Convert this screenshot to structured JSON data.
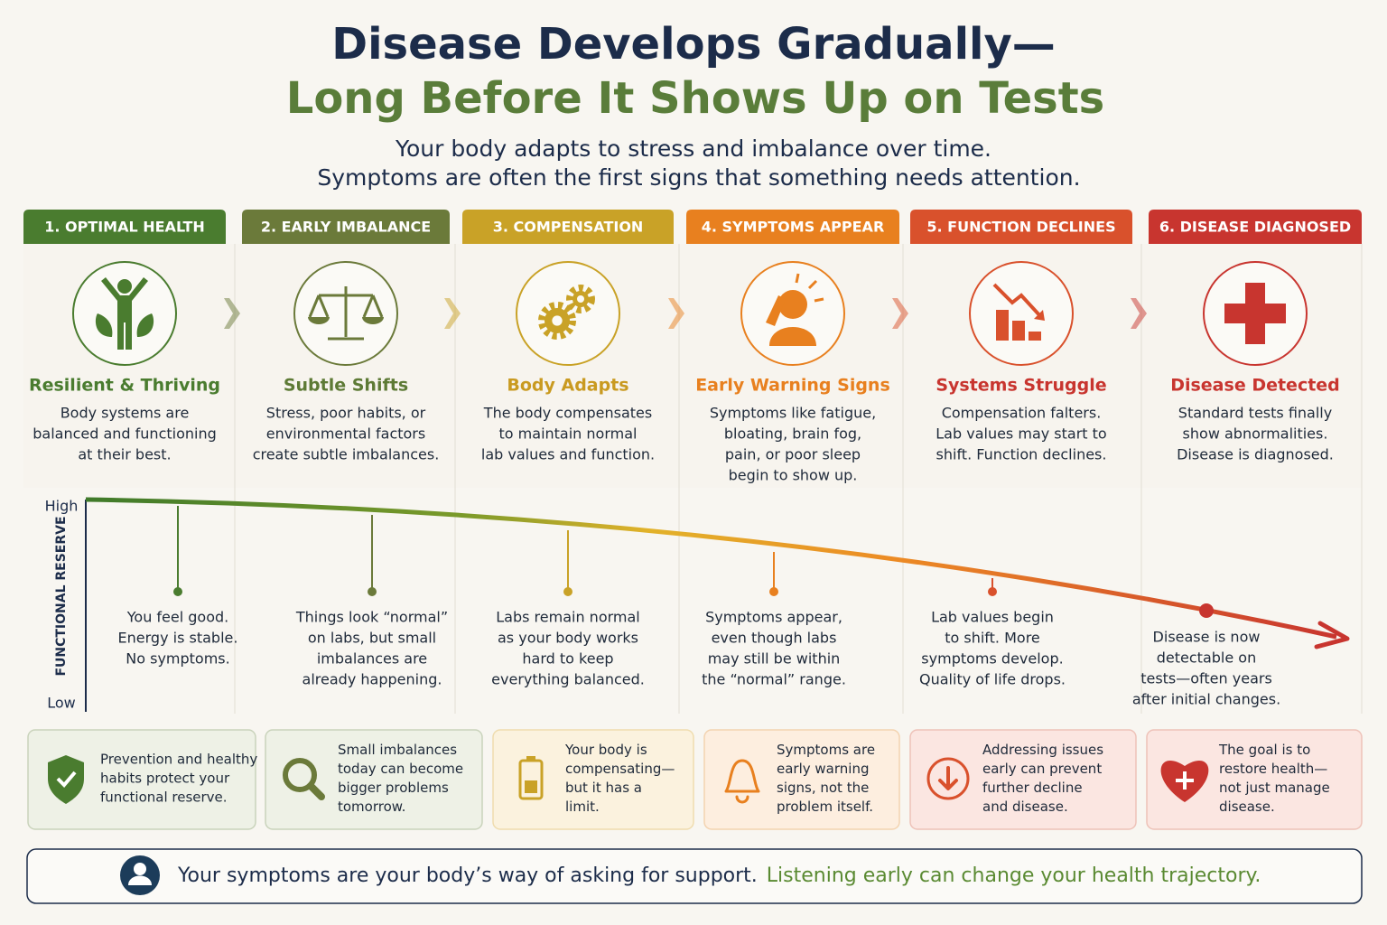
{
  "header": {
    "title_line1": "Disease Develops Gradually—",
    "title_line2": "Long Before It Shows Up on Tests",
    "subtitle_line1": "Your body adapts to stress and imbalance over time.",
    "subtitle_line2": "Symptoms are often the first signs that something needs attention."
  },
  "stages": [
    {
      "label": "1. OPTIMAL HEALTH",
      "title": "Resilient & Thriving",
      "description": [
        "Body systems are",
        "balanced and functioning",
        "at their best."
      ],
      "note": [
        "You feel good.",
        "Energy is stable.",
        "No symptoms."
      ],
      "tip": [
        "Prevention and healthy",
        "habits protect your",
        "functional reserve."
      ]
    },
    {
      "label": "2. EARLY IMBALANCE",
      "title": "Subtle Shifts",
      "description": [
        "Stress, poor habits, or",
        "environmental factors",
        "create subtle imbalances."
      ],
      "note": [
        "Things look “normal”",
        "on labs, but small",
        "imbalances are",
        "already happening."
      ],
      "tip": [
        "Small imbalances",
        "today can become",
        "bigger problems",
        "tomorrow."
      ]
    },
    {
      "label": "3. COMPENSATION",
      "title": "Body Adapts",
      "description": [
        "The body compensates",
        "to maintain normal",
        "lab values and function."
      ],
      "note": [
        "Labs remain normal",
        "as your body works",
        "hard to keep",
        "everything balanced."
      ],
      "tip": [
        "Your body is",
        "compensating—",
        "but it has a",
        "limit."
      ]
    },
    {
      "label": "4. SYMPTOMS APPEAR",
      "title": "Early Warning Signs",
      "description": [
        "Symptoms like fatigue,",
        "bloating, brain fog,",
        "pain, or poor sleep",
        "begin to show up."
      ],
      "note": [
        "Symptoms appear,",
        "even though labs",
        "may still be within",
        "the “normal” range."
      ],
      "tip": [
        "Symptoms are",
        "early warning",
        "signs, not the",
        "problem itself."
      ]
    },
    {
      "label": "5. FUNCTION DECLINES",
      "title": "Systems Struggle",
      "description": [
        "Compensation falters.",
        "Lab values may start to",
        "shift. Function declines."
      ],
      "note": [
        "Lab values begin",
        "to shift. More",
        "symptoms develop.",
        "Quality of life drops."
      ],
      "tip": [
        "Addressing issues",
        "early can prevent",
        "further decline",
        "and disease."
      ]
    },
    {
      "label": "6. DISEASE DIAGNOSED",
      "title": "Disease Detected",
      "description": [
        "Standard tests finally",
        "show abnormalities.",
        "Disease is diagnosed."
      ],
      "note": [
        "Disease is now",
        "detectable on",
        "tests—often years",
        "after initial changes."
      ],
      "tip": [
        "The goal is to",
        "restore health—",
        "not just manage",
        "disease."
      ]
    }
  ],
  "axis": {
    "high": "High",
    "low": "Low",
    "label": "FUNCTIONAL RESERVE"
  },
  "footer": {
    "text": "Your symptoms are your body’s way of asking for support.",
    "highlight": "Listening early can change your health trajectory."
  }
}
